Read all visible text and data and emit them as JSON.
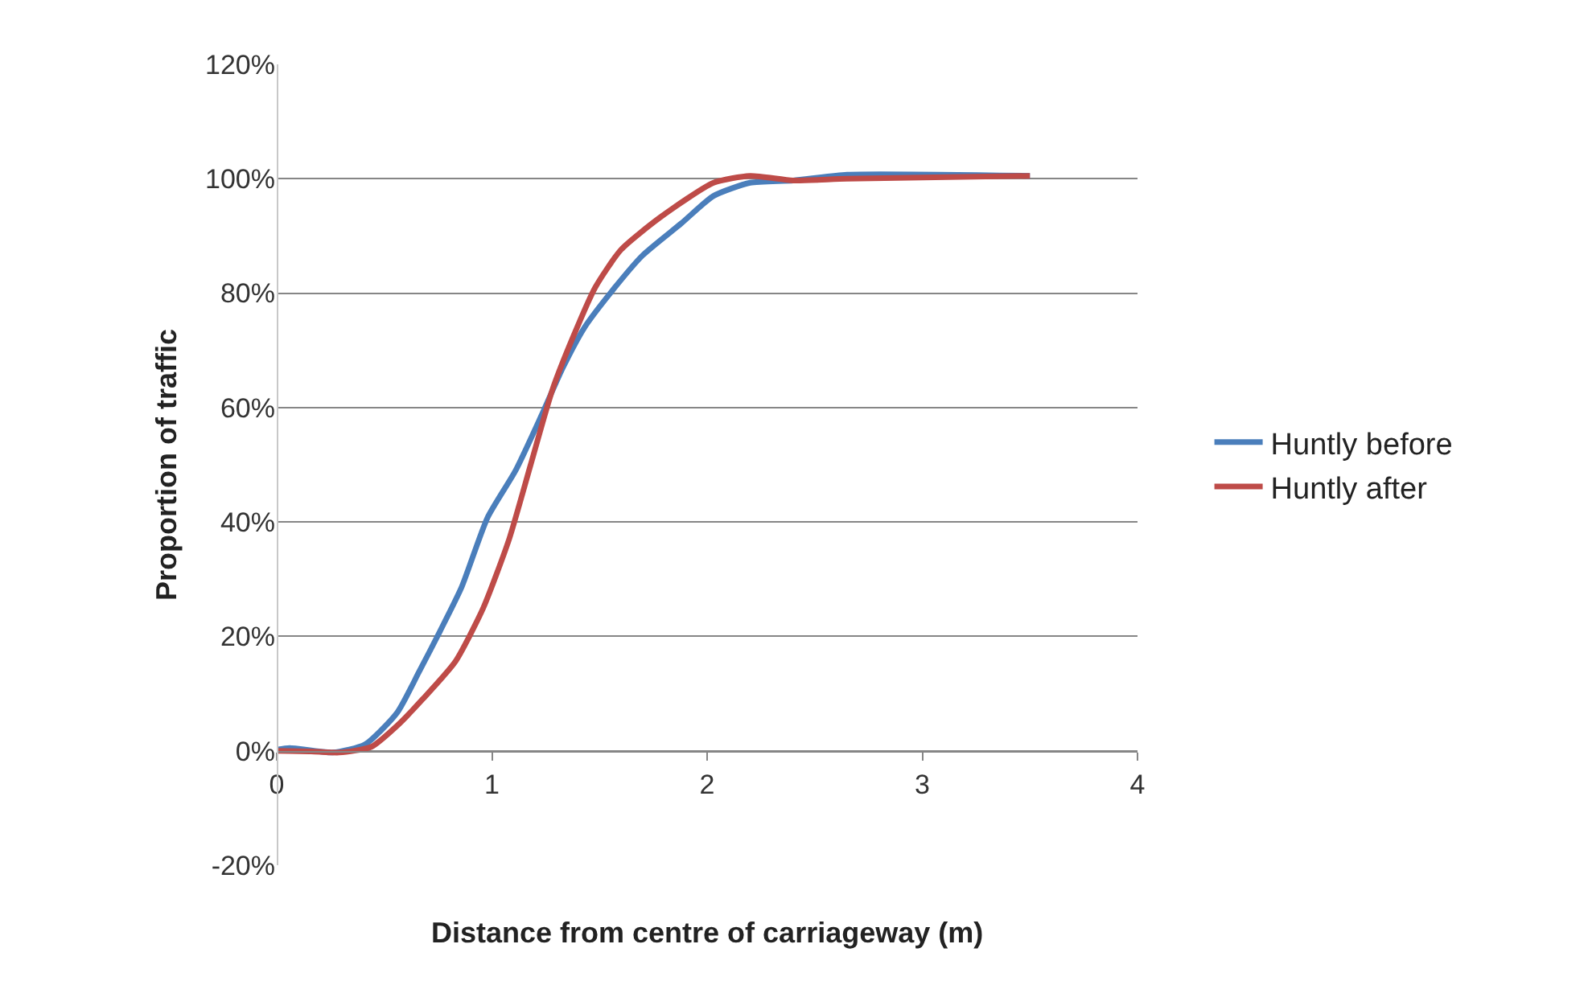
{
  "chart_data": {
    "type": "line",
    "xlabel": "Distance from centre of carriageway (m)",
    "ylabel": "Proportion of traffic",
    "xlim": [
      0,
      4
    ],
    "xticks": [
      0,
      1,
      2,
      3,
      4
    ],
    "ylim": [
      -20,
      120
    ],
    "yticks": [
      {
        "value": -20,
        "label": "-20%"
      },
      {
        "value": 0,
        "label": "0%"
      },
      {
        "value": 20,
        "label": "20%"
      },
      {
        "value": 40,
        "label": "40%"
      },
      {
        "value": 60,
        "label": "60%"
      },
      {
        "value": 80,
        "label": "80%"
      },
      {
        "value": 100,
        "label": "100%"
      },
      {
        "value": 120,
        "label": "120%"
      }
    ],
    "grid": "y",
    "legend": "right",
    "marker": "none",
    "line_style": "solid",
    "series": [
      {
        "name": "Huntly before",
        "color": "#4a7ebb",
        "x": [
          0,
          0.06,
          0.26,
          0.41,
          0.56,
          0.66,
          0.76,
          0.86,
          0.98,
          1.11,
          1.23,
          1.33,
          1.43,
          1.55,
          1.7,
          1.88,
          2.03,
          2.2,
          2.4,
          2.65,
          3.5
        ],
        "values": [
          0.2,
          0.5,
          -0.3,
          1.1,
          6.7,
          13.7,
          21,
          28.7,
          40.8,
          49,
          58.6,
          67,
          74,
          80,
          86.6,
          92.2,
          97,
          99.3,
          99.7,
          100.7,
          100.5
        ]
      },
      {
        "name": "Huntly after",
        "color": "#be4b48",
        "x": [
          0,
          0.16,
          0.29,
          0.44,
          0.56,
          0.68,
          0.83,
          0.96,
          1.08,
          1.18,
          1.28,
          1.38,
          1.48,
          1.6,
          1.78,
          2.03,
          2.2,
          2.4,
          2.65,
          3.5
        ],
        "values": [
          0,
          -0.1,
          -0.3,
          0.7,
          4.4,
          9.1,
          15.6,
          25,
          37,
          50,
          63,
          72.6,
          81,
          87.6,
          93.2,
          99.3,
          100.5,
          99.7,
          100,
          100.5
        ]
      }
    ]
  }
}
